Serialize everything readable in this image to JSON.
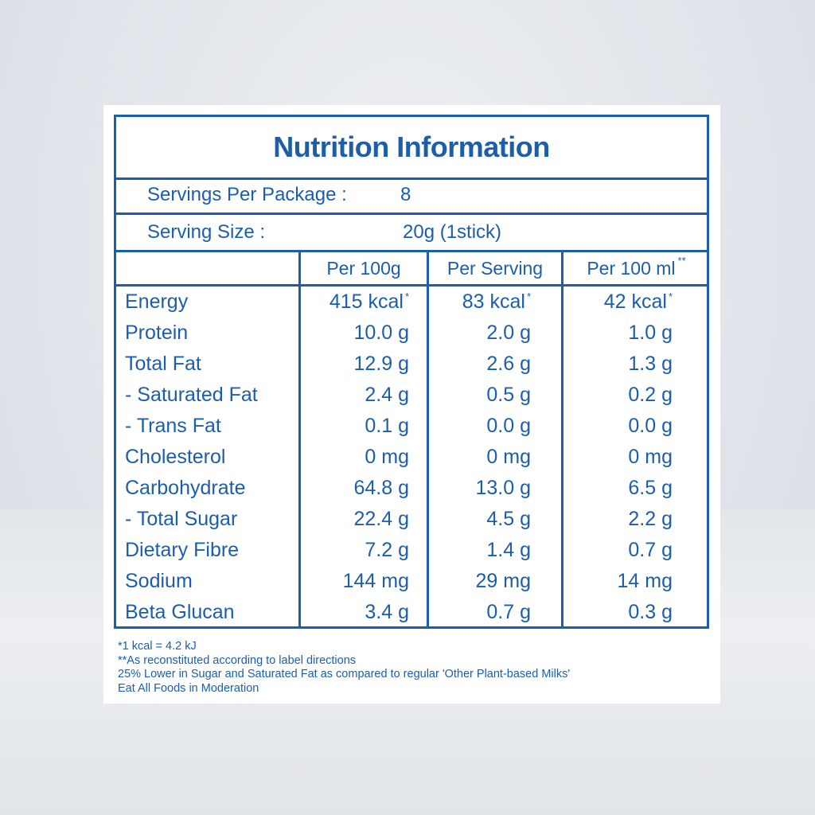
{
  "title": "Nutrition Information",
  "servings": {
    "label": "Servings Per Package :",
    "value": "8"
  },
  "serving_size": {
    "label": "Serving Size :",
    "value": "20g (1stick)"
  },
  "headers": {
    "col1": "Per 100g",
    "col2": "Per Serving",
    "col3": "Per 100 ml",
    "col3_mark": "**"
  },
  "rows": [
    {
      "name": "Energy",
      "per100g": "415 kcal",
      "perServing": "83 kcal",
      "per100ml": "42 kcal",
      "mark": "*"
    },
    {
      "name": "Protein",
      "per100g": "10.0 g",
      "perServing": "2.0 g",
      "per100ml": "1.0 g"
    },
    {
      "name": "Total Fat",
      "per100g": "12.9 g",
      "perServing": "2.6 g",
      "per100ml": "1.3 g"
    },
    {
      "name": "- Saturated Fat",
      "per100g": "2.4 g",
      "perServing": "0.5 g",
      "per100ml": "0.2 g"
    },
    {
      "name": "- Trans Fat",
      "per100g": "0.1 g",
      "perServing": "0.0 g",
      "per100ml": "0.0 g"
    },
    {
      "name": "Cholesterol",
      "per100g": "0 mg",
      "perServing": "0 mg",
      "per100ml": "0 mg"
    },
    {
      "name": "Carbohydrate",
      "per100g": "64.8 g",
      "perServing": "13.0 g",
      "per100ml": "6.5 g"
    },
    {
      "name": "- Total Sugar",
      "per100g": "22.4 g",
      "perServing": "4.5 g",
      "per100ml": "2.2 g"
    },
    {
      "name": "Dietary Fibre",
      "per100g": "7.2 g",
      "perServing": "1.4 g",
      "per100ml": "0.7 g"
    },
    {
      "name": "Sodium",
      "per100g": "144 mg",
      "perServing": "29 mg",
      "per100ml": "14 mg"
    },
    {
      "name": "Beta Glucan",
      "per100g": "3.4 g",
      "perServing": "0.7 g",
      "per100ml": "0.3 g"
    }
  ],
  "notes": [
    "*1 kcal = 4.2 kJ",
    "**As reconstituted according to label directions",
    "25% Lower in Sugar and Saturated Fat as compared to regular 'Other Plant-based Milks'",
    "Eat All Foods in Moderation"
  ],
  "colors": {
    "primary": "#1c5ea8",
    "background": "#e4e7ec",
    "card": "#ffffff"
  }
}
